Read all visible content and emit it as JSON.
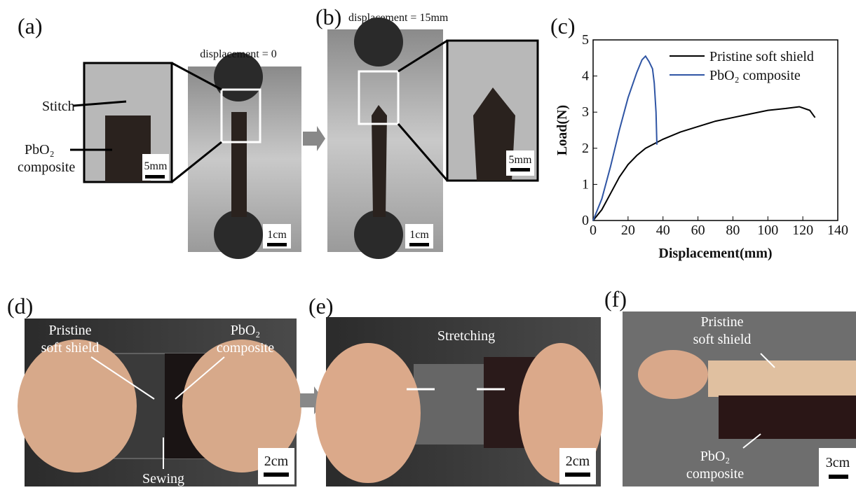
{
  "panels": {
    "a": {
      "label": "(a)",
      "caption": "displacement = 0",
      "stitch": "Stitch",
      "material": [
        "PbO₂",
        "composite"
      ],
      "inset_scale": "5mm",
      "scale": "1cm"
    },
    "b": {
      "label": "(b)",
      "caption": "displacement = 15mm",
      "inset_scale": "5mm",
      "scale": "1cm"
    },
    "c": {
      "label": "(c)"
    },
    "d": {
      "label": "(d)",
      "left": [
        "Pristine",
        "soft shield"
      ],
      "right": [
        "PbO₂",
        "composite"
      ],
      "seam": "Sewing",
      "scale": "2cm"
    },
    "e": {
      "label": "(e)",
      "action": "Stretching",
      "scale": "2cm"
    },
    "f": {
      "label": "(f)",
      "top": [
        "Pristine",
        "soft shield"
      ],
      "bottom": [
        "PbO₂",
        "composite"
      ],
      "scale": "3cm"
    }
  },
  "chart_data": {
    "type": "line",
    "x_label": "Displacement(mm)",
    "y_label": "Load(N)",
    "xlim": [
      0,
      140
    ],
    "ylim": [
      0,
      5
    ],
    "xticks": [
      0,
      20,
      40,
      60,
      80,
      100,
      120,
      140
    ],
    "yticks": [
      0,
      1,
      2,
      3,
      4,
      5
    ],
    "series": [
      {
        "name": "Pristine soft shield",
        "color": "#000000",
        "x": [
          0,
          5,
          10,
          15,
          20,
          25,
          30,
          40,
          50,
          60,
          70,
          80,
          90,
          100,
          110,
          118,
          124,
          127
        ],
        "values": [
          0,
          0.3,
          0.75,
          1.2,
          1.55,
          1.8,
          2.0,
          2.25,
          2.45,
          2.6,
          2.75,
          2.85,
          2.95,
          3.05,
          3.1,
          3.15,
          3.05,
          2.85
        ]
      },
      {
        "name": "PbO₂ composite",
        "color": "#2f55a4",
        "x": [
          0,
          5,
          10,
          15,
          20,
          25,
          28,
          30,
          32,
          34,
          35,
          36,
          36.5
        ],
        "values": [
          0,
          0.6,
          1.5,
          2.5,
          3.4,
          4.1,
          4.45,
          4.55,
          4.4,
          4.2,
          3.8,
          3.0,
          2.1
        ]
      }
    ]
  }
}
